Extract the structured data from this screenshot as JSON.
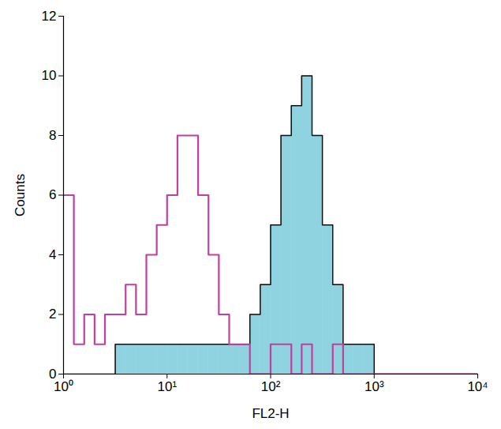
{
  "chart_data": {
    "type": "histogram",
    "xlabel": "FL2-H",
    "ylabel": "Counts",
    "log": "x",
    "bins": [
      1,
      1.259,
      1.585,
      1.995,
      2.512,
      3.162,
      3.981,
      5.012,
      6.31,
      7.943,
      10,
      12.59,
      15.85,
      19.95,
      25.12,
      31.62,
      39.81,
      50.12,
      63.1,
      79.43,
      100,
      125.9,
      158.5,
      199.5,
      251.2,
      316.2,
      398.1,
      501.2,
      631,
      794.3,
      1000,
      1259,
      1585,
      1995,
      2512,
      3162,
      3981,
      5012,
      6310,
      7943,
      10000
    ],
    "series": [
      {
        "type": "bar",
        "color": "#8fd3e0",
        "values": [
          0,
          0,
          0,
          0,
          0,
          1,
          1,
          1,
          1,
          1,
          1,
          1,
          1,
          1,
          1,
          1,
          1,
          1,
          2,
          3,
          5,
          8,
          9,
          10,
          8,
          5,
          3,
          1,
          1,
          1,
          0,
          0,
          0,
          0,
          0,
          0,
          0,
          0,
          0,
          0
        ]
      },
      {
        "type": "line",
        "color": "#c040a0",
        "values": [
          6,
          1,
          2,
          1,
          2,
          2,
          3,
          2,
          4,
          5,
          6,
          8,
          8,
          6,
          4,
          2,
          1,
          1,
          0,
          0,
          1,
          1,
          0,
          1,
          0,
          0,
          1,
          0,
          0,
          0,
          0,
          0,
          0,
          0,
          0,
          0,
          0,
          0,
          0,
          0
        ]
      }
    ],
    "xlim": [
      1,
      10000
    ],
    "xticks": [
      {
        "value": 1,
        "label": "10⁰"
      },
      {
        "value": 10,
        "label": "10¹"
      },
      {
        "value": 100,
        "label": "10²"
      },
      {
        "value": 1000,
        "label": "10³"
      },
      {
        "value": 10000,
        "label": "10⁴"
      }
    ],
    "ylim": [
      0,
      12
    ],
    "yticks": [
      0,
      2,
      4,
      6,
      8,
      10,
      12
    ]
  }
}
